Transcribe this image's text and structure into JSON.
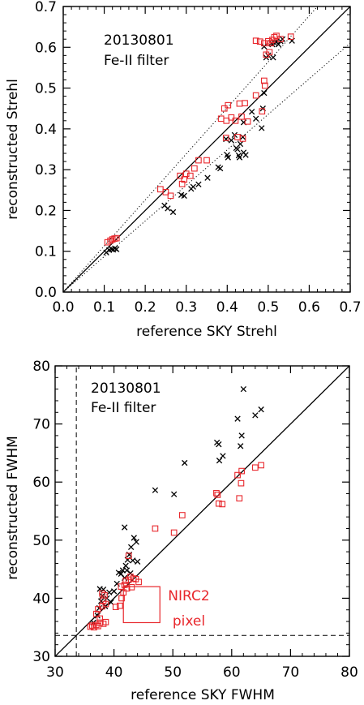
{
  "chart_data": [
    {
      "type": "scatter",
      "annotation_lines": [
        "20130801",
        "Fe-II filter"
      ],
      "xlabel": "reference SKY Strehl",
      "ylabel": "reconstructed Strehl",
      "xlim": [
        0.0,
        0.7
      ],
      "ylim": [
        0.0,
        0.7
      ],
      "xticks": [
        "0.0",
        "0.1",
        "0.2",
        "0.3",
        "0.4",
        "0.5",
        "0.6",
        "0.7"
      ],
      "yticks": [
        "0.0",
        "0.1",
        "0.2",
        "0.3",
        "0.4",
        "0.5",
        "0.6",
        "0.7"
      ],
      "grid": false,
      "colors": {
        "cross": "#000000",
        "square": "#e8272c"
      },
      "reference_lines": [
        {
          "style": "solid",
          "x": [
            0.0,
            0.7
          ],
          "y": [
            0.0,
            0.7
          ]
        },
        {
          "style": "dotted",
          "x": [
            0.0,
            0.7
          ],
          "y": [
            0.0,
            0.79
          ]
        },
        {
          "style": "dotted",
          "x": [
            0.0,
            0.7
          ],
          "y": [
            0.0,
            0.61
          ]
        }
      ],
      "series": [
        {
          "marker": "x",
          "points": [
            [
              0.105,
              0.097
            ],
            [
              0.112,
              0.103
            ],
            [
              0.118,
              0.105
            ],
            [
              0.122,
              0.104
            ],
            [
              0.126,
              0.107
            ],
            [
              0.13,
              0.105
            ],
            [
              0.247,
              0.212
            ],
            [
              0.255,
              0.205
            ],
            [
              0.268,
              0.196
            ],
            [
              0.288,
              0.238
            ],
            [
              0.295,
              0.236
            ],
            [
              0.312,
              0.253
            ],
            [
              0.317,
              0.258
            ],
            [
              0.33,
              0.264
            ],
            [
              0.352,
              0.28
            ],
            [
              0.378,
              0.306
            ],
            [
              0.383,
              0.303
            ],
            [
              0.397,
              0.375
            ],
            [
              0.4,
              0.336
            ],
            [
              0.402,
              0.33
            ],
            [
              0.41,
              0.372
            ],
            [
              0.418,
              0.385
            ],
            [
              0.422,
              0.353
            ],
            [
              0.425,
              0.35
            ],
            [
              0.428,
              0.335
            ],
            [
              0.43,
              0.33
            ],
            [
              0.432,
              0.363
            ],
            [
              0.438,
              0.38
            ],
            [
              0.44,
              0.342
            ],
            [
              0.445,
              0.336
            ],
            [
              0.44,
              0.416
            ],
            [
              0.46,
              0.442
            ],
            [
              0.47,
              0.425
            ],
            [
              0.484,
              0.402
            ],
            [
              0.487,
              0.45
            ],
            [
              0.49,
              0.488
            ],
            [
              0.49,
              0.602
            ],
            [
              0.495,
              0.575
            ],
            [
              0.5,
              0.58
            ],
            [
              0.508,
              0.61
            ],
            [
              0.51,
              0.607
            ],
            [
              0.512,
              0.575
            ],
            [
              0.515,
              0.611
            ],
            [
              0.52,
              0.613
            ],
            [
              0.525,
              0.607
            ],
            [
              0.53,
              0.615
            ],
            [
              0.535,
              0.62
            ],
            [
              0.558,
              0.616
            ]
          ]
        },
        {
          "marker": "square",
          "points": [
            [
              0.108,
              0.122
            ],
            [
              0.115,
              0.126
            ],
            [
              0.12,
              0.129
            ],
            [
              0.125,
              0.131
            ],
            [
              0.13,
              0.132
            ],
            [
              0.237,
              0.252
            ],
            [
              0.25,
              0.245
            ],
            [
              0.262,
              0.236
            ],
            [
              0.285,
              0.285
            ],
            [
              0.29,
              0.265
            ],
            [
              0.295,
              0.276
            ],
            [
              0.3,
              0.29
            ],
            [
              0.31,
              0.285
            ],
            [
              0.32,
              0.303
            ],
            [
              0.33,
              0.323
            ],
            [
              0.35,
              0.323
            ],
            [
              0.385,
              0.425
            ],
            [
              0.393,
              0.45
            ],
            [
              0.397,
              0.378
            ],
            [
              0.398,
              0.42
            ],
            [
              0.402,
              0.458
            ],
            [
              0.41,
              0.428
            ],
            [
              0.42,
              0.42
            ],
            [
              0.425,
              0.38
            ],
            [
              0.43,
              0.462
            ],
            [
              0.435,
              0.43
            ],
            [
              0.438,
              0.376
            ],
            [
              0.443,
              0.463
            ],
            [
              0.45,
              0.418
            ],
            [
              0.47,
              0.482
            ],
            [
              0.485,
              0.443
            ],
            [
              0.49,
              0.518
            ],
            [
              0.492,
              0.506
            ],
            [
              0.47,
              0.616
            ],
            [
              0.48,
              0.614
            ],
            [
              0.49,
              0.61
            ],
            [
              0.495,
              0.582
            ],
            [
              0.5,
              0.615
            ],
            [
              0.503,
              0.588
            ],
            [
              0.506,
              0.61
            ],
            [
              0.51,
              0.618
            ],
            [
              0.515,
              0.625
            ],
            [
              0.52,
              0.628
            ],
            [
              0.53,
              0.62
            ],
            [
              0.555,
              0.626
            ]
          ]
        }
      ]
    },
    {
      "type": "scatter",
      "annotation_lines": [
        "20130801",
        "Fe-II filter"
      ],
      "box_lines": [
        "NIRC2",
        "pixel"
      ],
      "xlabel": "reference SKY FWHM",
      "ylabel": "reconstructed FWHM",
      "xlim": [
        30,
        80
      ],
      "ylim": [
        30,
        80
      ],
      "xticks": [
        "30",
        "40",
        "50",
        "60",
        "70",
        "80"
      ],
      "yticks": [
        "30",
        "40",
        "50",
        "60",
        "70",
        "80"
      ],
      "grid": false,
      "colors": {
        "cross": "#000000",
        "square": "#e8272c",
        "box": "#e8272c"
      },
      "pixel_box": {
        "x": [
          41.6,
          47.8
        ],
        "y": [
          35.8,
          42.0
        ]
      },
      "reference_lines": [
        {
          "style": "solid",
          "x": [
            30,
            80
          ],
          "y": [
            30,
            80
          ]
        },
        {
          "style": "dashed",
          "x": [
            30,
            80
          ],
          "y": [
            33.6,
            33.6
          ]
        },
        {
          "style": "dashed",
          "x": [
            33.6,
            33.6
          ],
          "y": [
            30,
            80
          ]
        }
      ],
      "series": [
        {
          "marker": "x",
          "points": [
            [
              36.5,
              35.8
            ],
            [
              37.2,
              37.0
            ],
            [
              37.5,
              38.3
            ],
            [
              37.8,
              39.5
            ],
            [
              38.0,
              40.4
            ],
            [
              38.2,
              41.5
            ],
            [
              37.6,
              41.6
            ],
            [
              38.5,
              38.6
            ],
            [
              38.8,
              40.0
            ],
            [
              39.2,
              41.0
            ],
            [
              39.5,
              39.3
            ],
            [
              40.0,
              41.2
            ],
            [
              40.5,
              42.5
            ],
            [
              40.8,
              44.4
            ],
            [
              41.2,
              44.2
            ],
            [
              41.5,
              44.8
            ],
            [
              41.8,
              43.5
            ],
            [
              42.0,
              45.6
            ],
            [
              42.3,
              46.6
            ],
            [
              42.6,
              47.5
            ],
            [
              42.9,
              48.8
            ],
            [
              43.4,
              50.4
            ],
            [
              43.8,
              49.7
            ],
            [
              41.8,
              52.2
            ],
            [
              42.2,
              44.8
            ],
            [
              42.8,
              44.3
            ],
            [
              43.2,
              46.5
            ],
            [
              44.0,
              46.3
            ],
            [
              47.0,
              58.6
            ],
            [
              50.2,
              57.9
            ],
            [
              52.0,
              63.3
            ],
            [
              57.5,
              66.8
            ],
            [
              57.8,
              66.5
            ],
            [
              57.9,
              63.7
            ],
            [
              58.5,
              64.5
            ],
            [
              61.0,
              70.9
            ],
            [
              61.5,
              66.2
            ],
            [
              61.7,
              68.0
            ],
            [
              62.0,
              76.0
            ],
            [
              64.0,
              71.5
            ],
            [
              65.0,
              72.5
            ]
          ]
        },
        {
          "marker": "square",
          "points": [
            [
              36.0,
              35.1
            ],
            [
              36.3,
              35.3
            ],
            [
              36.6,
              35.0
            ],
            [
              37.0,
              35.4
            ],
            [
              37.3,
              35.2
            ],
            [
              37.6,
              35.8
            ],
            [
              37.0,
              37.3
            ],
            [
              37.3,
              38.1
            ],
            [
              37.6,
              36.5
            ],
            [
              38.0,
              38.6
            ],
            [
              38.2,
              39.6
            ],
            [
              38.4,
              40.5
            ],
            [
              38.0,
              40.8
            ],
            [
              38.6,
              39.0
            ],
            [
              38.2,
              35.6
            ],
            [
              38.6,
              35.9
            ],
            [
              40.3,
              38.5
            ],
            [
              41.0,
              38.7
            ],
            [
              41.3,
              40.0
            ],
            [
              41.6,
              41.0
            ],
            [
              41.2,
              42.0
            ],
            [
              41.8,
              42.3
            ],
            [
              42.0,
              43.0
            ],
            [
              42.2,
              41.7
            ],
            [
              42.5,
              43.2
            ],
            [
              42.8,
              43.7
            ],
            [
              43.0,
              41.9
            ],
            [
              43.3,
              43.4
            ],
            [
              43.7,
              43.3
            ],
            [
              44.2,
              42.8
            ],
            [
              42.5,
              47.3
            ],
            [
              47.0,
              52.0
            ],
            [
              50.2,
              51.3
            ],
            [
              51.6,
              54.3
            ],
            [
              57.4,
              58.1
            ],
            [
              57.6,
              57.8
            ],
            [
              57.8,
              56.3
            ],
            [
              58.4,
              56.2
            ],
            [
              61.0,
              61.2
            ],
            [
              61.3,
              57.2
            ],
            [
              61.6,
              59.8
            ],
            [
              61.7,
              61.9
            ],
            [
              64.0,
              62.5
            ],
            [
              65.0,
              62.9
            ]
          ]
        }
      ]
    }
  ]
}
